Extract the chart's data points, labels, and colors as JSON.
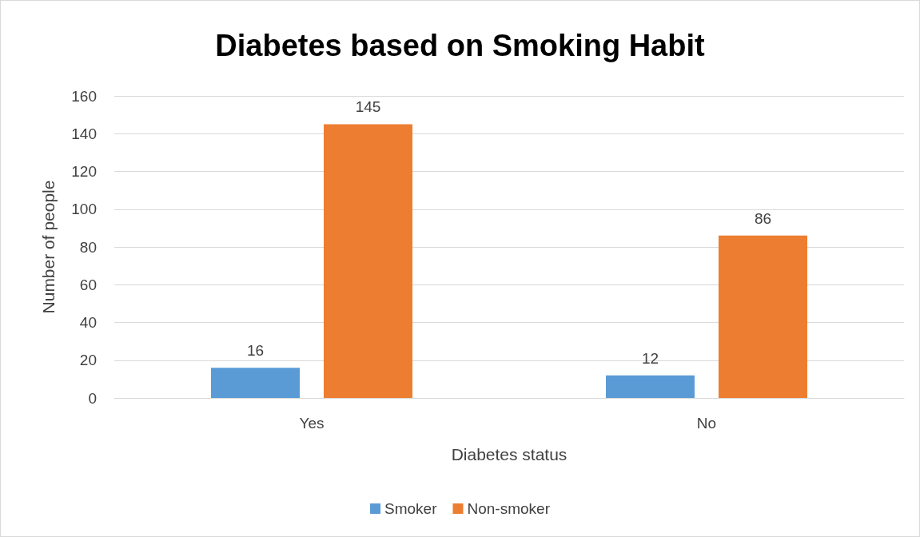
{
  "chart_data": {
    "type": "bar",
    "title": "Diabetes based on Smoking Habit",
    "xlabel": "Diabetes status",
    "ylabel": "Number of people",
    "categories": [
      "Yes",
      "No"
    ],
    "series": [
      {
        "name": "Smoker",
        "color": "#5b9bd5",
        "values": [
          16,
          12
        ]
      },
      {
        "name": "Non-smoker",
        "color": "#ed7d31",
        "values": [
          145,
          86
        ]
      }
    ],
    "ylim": [
      0,
      160
    ],
    "yticks": [
      0,
      20,
      40,
      60,
      80,
      100,
      120,
      140,
      160
    ],
    "grid": "y",
    "legend": "bottom",
    "data_labels": true
  }
}
